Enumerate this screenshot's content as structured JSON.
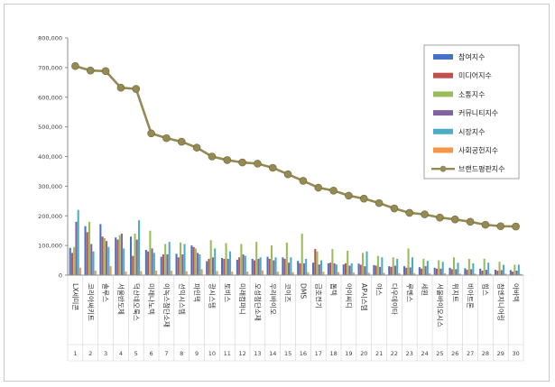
{
  "chart_data": {
    "type": "bar",
    "title": "",
    "xlabel": "",
    "ylabel": "",
    "ylim": [
      0,
      800000
    ],
    "yticks": [
      "0",
      "100,000",
      "200,000",
      "300,000",
      "400,000",
      "500,000",
      "600,000",
      "700,000",
      "800,000"
    ],
    "grid": false,
    "legend_position": "top-right",
    "ranks": [
      "1",
      "2",
      "3",
      "4",
      "5",
      "6",
      "7",
      "8",
      "9",
      "10",
      "11",
      "12",
      "13",
      "14",
      "15",
      "16",
      "17",
      "18",
      "19",
      "20",
      "21",
      "22",
      "23",
      "24",
      "25",
      "26",
      "27",
      "28",
      "29",
      "30"
    ],
    "categories": [
      "LX세미콘",
      "코리아써키트",
      "솔루스",
      "서울반도체",
      "덕산네오룩스",
      "미래나노텍",
      "이녹스첨단소재",
      "선익시스템",
      "파인텍",
      "광시스템",
      "토비스",
      "미래컴퍼니",
      "오성첨단소재",
      "우리바이오",
      "코이즈",
      "DMS",
      "금호전기",
      "톱텍",
      "아이씨디",
      "AP시스템",
      "야스",
      "다우데이타",
      "루멘스",
      "세원",
      "서울바이오시스",
      "위지트",
      "비아트론",
      "힘스",
      "참엔지니어링",
      "아바텍"
    ],
    "series": [
      {
        "name": "참여지수",
        "color": "#4472c4",
        "values": [
          92000,
          165000,
          172000,
          127000,
          130000,
          85000,
          62000,
          72000,
          100000,
          47000,
          58000,
          52000,
          55000,
          62000,
          60000,
          48000,
          42000,
          40000,
          36000,
          39000,
          34000,
          30000,
          30000,
          27000,
          25000,
          25000,
          23000,
          22000,
          18000,
          17000
        ]
      },
      {
        "name": "미디어지수",
        "color": "#c0504d",
        "values": [
          75000,
          145000,
          130000,
          120000,
          65000,
          80000,
          70000,
          60000,
          95000,
          55000,
          55000,
          60000,
          50000,
          55000,
          55000,
          40000,
          88000,
          42000,
          40000,
          35000,
          32000,
          28000,
          25000,
          22000,
          22000,
          20000,
          18000,
          15000,
          15000,
          12000
        ]
      },
      {
        "name": "소통지수",
        "color": "#9bbb59",
        "values": [
          95000,
          180000,
          125000,
          135000,
          140000,
          150000,
          105000,
          110000,
          90000,
          118000,
          108000,
          105000,
          112000,
          100000,
          110000,
          140000,
          80000,
          88000,
          82000,
          75000,
          65000,
          60000,
          90000,
          55000,
          50000,
          60000,
          55000,
          55000,
          45000,
          35000
        ]
      },
      {
        "name": "커뮤니티지수",
        "color": "#8064a2",
        "values": [
          180000,
          105000,
          115000,
          140000,
          120000,
          90000,
          70000,
          70000,
          75000,
          60000,
          55000,
          70000,
          55000,
          50000,
          42000,
          40000,
          36000,
          40000,
          32000,
          30000,
          28000,
          32000,
          26000,
          30000,
          22000,
          20000,
          20000,
          18000,
          17000,
          15000
        ]
      },
      {
        "name": "시장지수",
        "color": "#4bacc6",
        "values": [
          220000,
          80000,
          95000,
          90000,
          185000,
          75000,
          112000,
          105000,
          70000,
          90000,
          80000,
          65000,
          60000,
          60000,
          60000,
          55000,
          50000,
          36000,
          40000,
          80000,
          60000,
          55000,
          60000,
          48000,
          45000,
          42000,
          40000,
          42000,
          35000,
          35000
        ]
      },
      {
        "name": "사회공헌지수",
        "color": "#f79646",
        "values": [
          25000,
          15000,
          30000,
          12000,
          14000,
          15000,
          15000,
          13000,
          20000,
          14000,
          12000,
          12000,
          16000,
          12000,
          10000,
          10000,
          12000,
          10000,
          9000,
          8000,
          8000,
          7000,
          7000,
          6000,
          6000,
          5000,
          5000,
          5000,
          5000,
          4000
        ]
      },
      {
        "name": "브랜드평판지수",
        "color": "#948a54",
        "values": [
          705000,
          690000,
          688000,
          632000,
          628000,
          478000,
          462000,
          450000,
          430000,
          400000,
          388000,
          380000,
          376000,
          362000,
          340000,
          318000,
          295000,
          285000,
          268000,
          258000,
          243000,
          225000,
          210000,
          205000,
          194000,
          188000,
          180000,
          170000,
          165000,
          164000
        ]
      }
    ]
  }
}
